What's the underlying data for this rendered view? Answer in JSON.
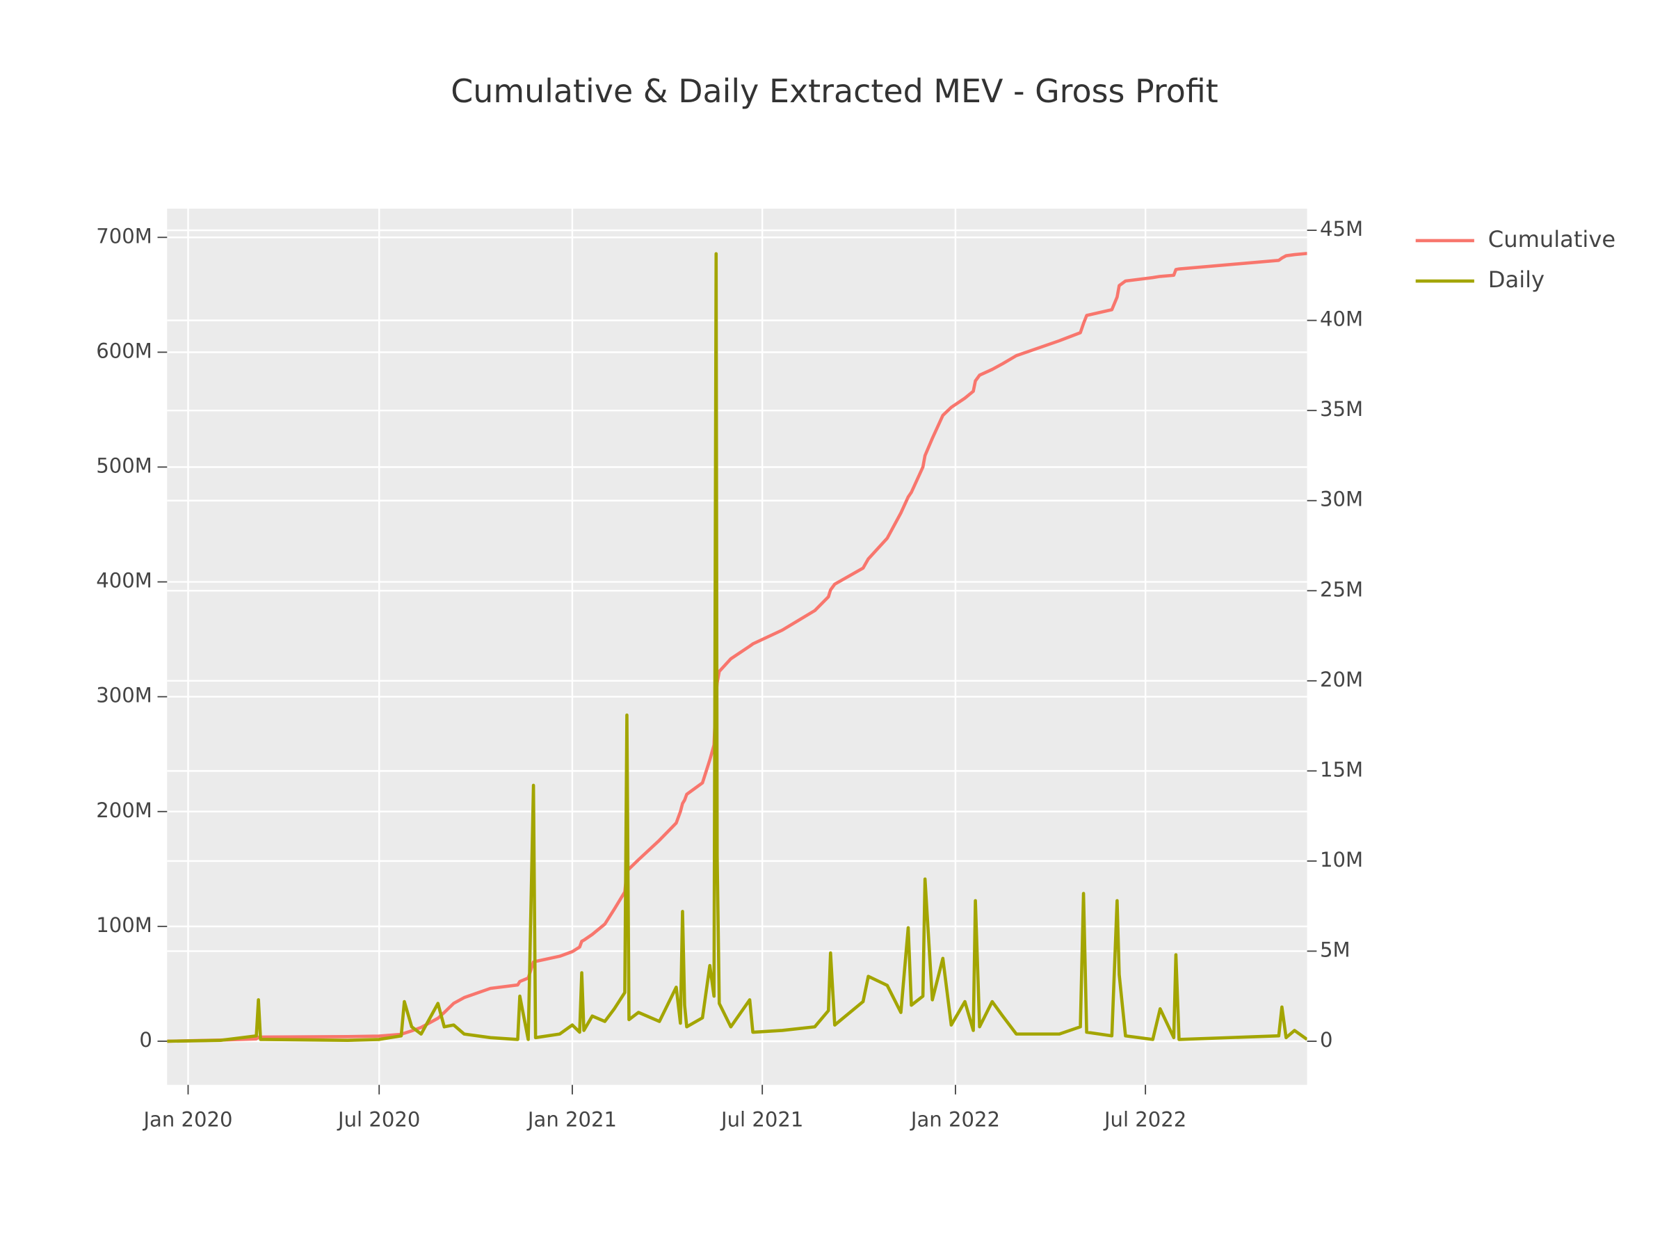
{
  "chart_data": {
    "type": "line",
    "title": "Cumulative & Daily Extracted MEV - Gross Profit",
    "legend": "right",
    "grid": true,
    "xlim": [
      "2019-12-12",
      "2022-12-02"
    ],
    "xticks": [
      {
        "value": "2020-01-01",
        "label": "Jan 2020"
      },
      {
        "value": "2020-07-01",
        "label": "Jul 2020"
      },
      {
        "value": "2021-01-01",
        "label": "Jan 2021"
      },
      {
        "value": "2021-07-01",
        "label": "Jul 2021"
      },
      {
        "value": "2022-01-01",
        "label": "Jan 2022"
      },
      {
        "value": "2022-07-01",
        "label": "Jul 2022"
      }
    ],
    "ylim": [
      -38000000,
      725000000
    ],
    "yticks": [
      0,
      {
        "value": 100000000,
        "label": "100M"
      },
      {
        "value": 200000000,
        "label": "200M"
      },
      {
        "value": 300000000,
        "label": "300M"
      },
      {
        "value": 400000000,
        "label": "400M"
      },
      {
        "value": 500000000,
        "label": "500M"
      },
      {
        "value": 600000000,
        "label": "600M"
      },
      {
        "value": 700000000,
        "label": "700M"
      }
    ],
    "y2lim": [
      -2420000,
      46200000
    ],
    "y2ticks": [
      0,
      {
        "value": 5000000,
        "label": "5M"
      },
      {
        "value": 10000000,
        "label": "10M"
      },
      {
        "value": 15000000,
        "label": "15M"
      },
      {
        "value": 20000000,
        "label": "20M"
      },
      {
        "value": 25000000,
        "label": "25M"
      },
      {
        "value": 30000000,
        "label": "30M"
      },
      {
        "value": 35000000,
        "label": "35M"
      },
      {
        "value": 40000000,
        "label": "40M"
      },
      {
        "value": 45000000,
        "label": "45M"
      }
    ],
    "x": [
      "2019-12-12",
      "2020-02-01",
      "2020-03-06",
      "2020-03-08",
      "2020-03-10",
      "2020-06-01",
      "2020-07-01",
      "2020-07-22",
      "2020-07-25",
      "2020-08-01",
      "2020-08-10",
      "2020-08-26",
      "2020-09-01",
      "2020-09-10",
      "2020-09-20",
      "2020-10-15",
      "2020-11-10",
      "2020-11-12",
      "2020-11-20",
      "2020-11-25",
      "2020-11-27",
      "2020-12-20",
      "2021-01-01",
      "2021-01-08",
      "2021-01-10",
      "2021-01-12",
      "2021-01-20",
      "2021-02-01",
      "2021-02-10",
      "2021-02-20",
      "2021-02-22",
      "2021-02-24",
      "2021-03-05",
      "2021-03-25",
      "2021-04-10",
      "2021-04-14",
      "2021-04-16",
      "2021-04-18",
      "2021-04-20",
      "2021-05-05",
      "2021-05-12",
      "2021-05-16",
      "2021-05-18",
      "2021-05-19",
      "2021-05-21",
      "2021-06-01",
      "2021-06-19",
      "2021-06-22",
      "2021-07-20",
      "2021-08-20",
      "2021-09-02",
      "2021-09-04",
      "2021-09-08",
      "2021-10-05",
      "2021-10-10",
      "2021-10-28",
      "2021-11-10",
      "2021-11-17",
      "2021-11-20",
      "2021-12-01",
      "2021-12-03",
      "2021-12-10",
      "2021-12-20",
      "2021-12-28",
      "2022-01-10",
      "2022-01-18",
      "2022-01-20",
      "2022-01-24",
      "2022-02-05",
      "2022-02-15",
      "2022-02-28",
      "2022-04-10",
      "2022-04-30",
      "2022-05-03",
      "2022-05-06",
      "2022-05-30",
      "2022-06-04",
      "2022-06-06",
      "2022-06-12",
      "2022-07-08",
      "2022-07-15",
      "2022-07-28",
      "2022-07-30",
      "2022-08-02",
      "2022-11-05",
      "2022-11-08",
      "2022-11-12",
      "2022-11-20",
      "2022-12-02"
    ],
    "series": [
      {
        "name": "Cumulative",
        "color": "#f8766d",
        "axis": "y",
        "values": [
          0,
          1000000,
          2000000,
          3500000,
          3600000,
          4000000,
          4500000,
          6000000,
          7000000,
          9000000,
          12000000,
          20000000,
          25000000,
          33000000,
          38000000,
          46000000,
          49000000,
          52000000,
          55000000,
          69000000,
          69500000,
          74000000,
          78000000,
          82000000,
          87000000,
          88000000,
          93000000,
          102000000,
          115000000,
          130000000,
          148000000,
          150000000,
          158000000,
          175000000,
          190000000,
          200000000,
          207000000,
          210000000,
          215000000,
          225000000,
          245000000,
          258000000,
          302000000,
          312000000,
          322000000,
          333000000,
          344000000,
          346000000,
          358000000,
          375000000,
          387000000,
          393000000,
          398000000,
          412000000,
          420000000,
          438000000,
          460000000,
          474000000,
          478000000,
          500000000,
          510000000,
          525000000,
          545000000,
          552000000,
          560000000,
          566000000,
          575000000,
          580000000,
          585000000,
          590000000,
          597000000,
          610000000,
          617000000,
          625000000,
          632000000,
          637000000,
          648000000,
          658000000,
          662000000,
          665000000,
          666000000,
          667000000,
          672000000,
          672500000,
          680000000,
          682000000,
          684000000,
          685000000,
          686000000
        ]
      },
      {
        "name": "Daily",
        "color": "#a3a500",
        "axis": "y2",
        "values": [
          0,
          50000,
          300000,
          2300000,
          100000,
          50000,
          100000,
          300000,
          2200000,
          800000,
          400000,
          2100000,
          800000,
          900000,
          400000,
          200000,
          100000,
          2500000,
          100000,
          14200000,
          200000,
          400000,
          900000,
          500000,
          3800000,
          600000,
          1400000,
          1100000,
          1800000,
          2700000,
          18100000,
          1200000,
          1600000,
          1100000,
          3000000,
          1000000,
          7200000,
          2000000,
          800000,
          1300000,
          4200000,
          2500000,
          43700000,
          10300000,
          2100000,
          800000,
          2300000,
          500000,
          600000,
          800000,
          1700000,
          4900000,
          900000,
          2200000,
          3600000,
          3100000,
          1600000,
          6300000,
          2000000,
          2500000,
          9000000,
          2300000,
          4600000,
          900000,
          2200000,
          600000,
          7800000,
          800000,
          2200000,
          1400000,
          400000,
          400000,
          800000,
          8200000,
          500000,
          300000,
          7800000,
          3700000,
          300000,
          100000,
          1800000,
          200000,
          4800000,
          100000,
          300000,
          1900000,
          200000,
          600000,
          100000
        ]
      }
    ]
  }
}
